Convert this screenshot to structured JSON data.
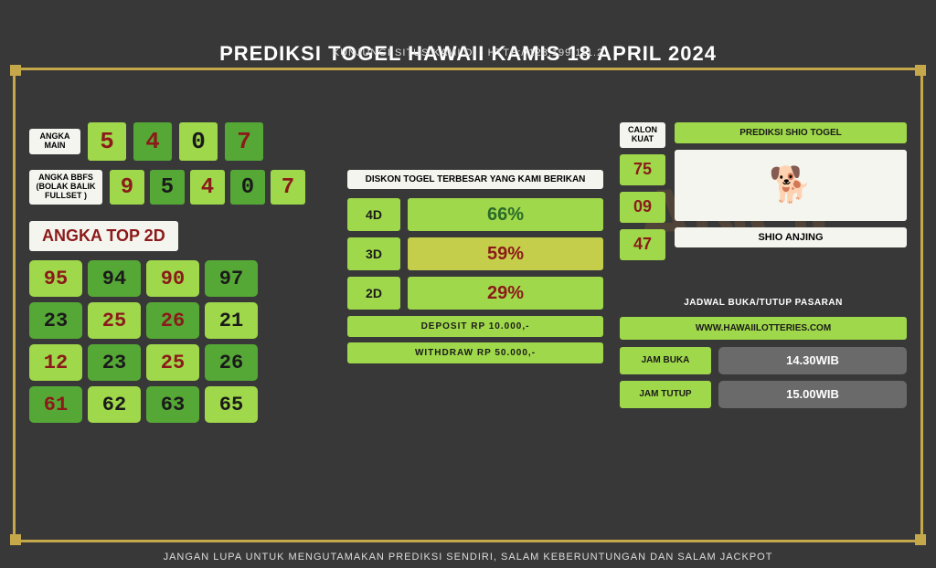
{
  "header_text": "KUNJUNGI SITUS KAMI DI : HTTP://128.199.111.2",
  "footer_text": "JANGAN LUPA UNTUK MENGUTAMAKAN PREDIKSI SENDIRI, SALAM KEBERUNTUNGAN DAN SALAM JACKPOT",
  "title": "PREDIKSI TOGEL HAWAII KAMIS 18 APRIL 2024",
  "labels": {
    "angka_main": "ANGKA MAIN",
    "angka_bbfs": "ANGKA BBFS (BOLAK BALIK FULLSET )",
    "top2d": "ANGKA TOP 2D",
    "diskon": "DISKON TOGEL TERBESAR YANG KAMI BERIKAN",
    "calon": "CALON KUAT",
    "shio_title": "PREDIKSI SHIO TOGEL",
    "shio_name": "SHIO ANJING",
    "jadwal": "JADWAL BUKA/TUTUP PASARAN",
    "url": "WWW.HAWAIILOTTERIES.COM",
    "jam_buka": "JAM BUKA",
    "jam_tutup": "JAM TUTUP"
  },
  "angka_main": [
    {
      "v": "5",
      "bg": "green-light",
      "cl": "red-text"
    },
    {
      "v": "4",
      "bg": "green-dark",
      "cl": "red-text"
    },
    {
      "v": "0",
      "bg": "green-light",
      "cl": "black-text"
    },
    {
      "v": "7",
      "bg": "green-dark",
      "cl": "red-text"
    }
  ],
  "angka_bbfs": [
    {
      "v": "9",
      "bg": "green-light",
      "cl": "red-text"
    },
    {
      "v": "5",
      "bg": "green-dark",
      "cl": "black-text"
    },
    {
      "v": "4",
      "bg": "green-light",
      "cl": "red-text"
    },
    {
      "v": "0",
      "bg": "green-dark",
      "cl": "black-text"
    },
    {
      "v": "7",
      "bg": "green-light",
      "cl": "red-text"
    }
  ],
  "top2d": [
    {
      "v": "95",
      "bg": "green-light",
      "cl": "red-text"
    },
    {
      "v": "94",
      "bg": "green-dark",
      "cl": "black-text"
    },
    {
      "v": "90",
      "bg": "green-light",
      "cl": "red-text"
    },
    {
      "v": "97",
      "bg": "green-dark",
      "cl": "black-text"
    },
    {
      "v": "23",
      "bg": "green-dark",
      "cl": "black-text"
    },
    {
      "v": "25",
      "bg": "green-light",
      "cl": "red-text"
    },
    {
      "v": "26",
      "bg": "green-dark",
      "cl": "red-text"
    },
    {
      "v": "21",
      "bg": "green-light",
      "cl": "black-text"
    },
    {
      "v": "12",
      "bg": "green-light",
      "cl": "red-text"
    },
    {
      "v": "23",
      "bg": "green-dark",
      "cl": "black-text"
    },
    {
      "v": "25",
      "bg": "green-light",
      "cl": "red-text"
    },
    {
      "v": "26",
      "bg": "green-dark",
      "cl": "black-text"
    },
    {
      "v": "61",
      "bg": "green-dark",
      "cl": "red-text"
    },
    {
      "v": "62",
      "bg": "green-light",
      "cl": "black-text"
    },
    {
      "v": "63",
      "bg": "green-dark",
      "cl": "black-text"
    },
    {
      "v": "65",
      "bg": "green-light",
      "cl": "black-text"
    }
  ],
  "diskon": [
    {
      "dim": "4D",
      "pct": "66%",
      "alt": false,
      "cl": "#2a6a2a"
    },
    {
      "dim": "3D",
      "pct": "59%",
      "alt": true,
      "cl": "#8b1a1a"
    },
    {
      "dim": "2D",
      "pct": "29%",
      "alt": false,
      "cl": "#8b1a1a"
    }
  ],
  "deposit": "DEPOSIT RP 10.000,-",
  "withdraw": "WITHDRAW RP 50.000,-",
  "calon": [
    "75",
    "09",
    "47"
  ],
  "shio_emoji": "🐕",
  "times": {
    "buka": "14.30WIB",
    "tutup": "15.00WIB"
  },
  "colors": {
    "frame": "#c5a84a",
    "bg": "#383838",
    "green_light": "#9fd84a",
    "green_dark": "#56a836",
    "cream": "#f5f5f0",
    "red": "#8b1a1a"
  }
}
